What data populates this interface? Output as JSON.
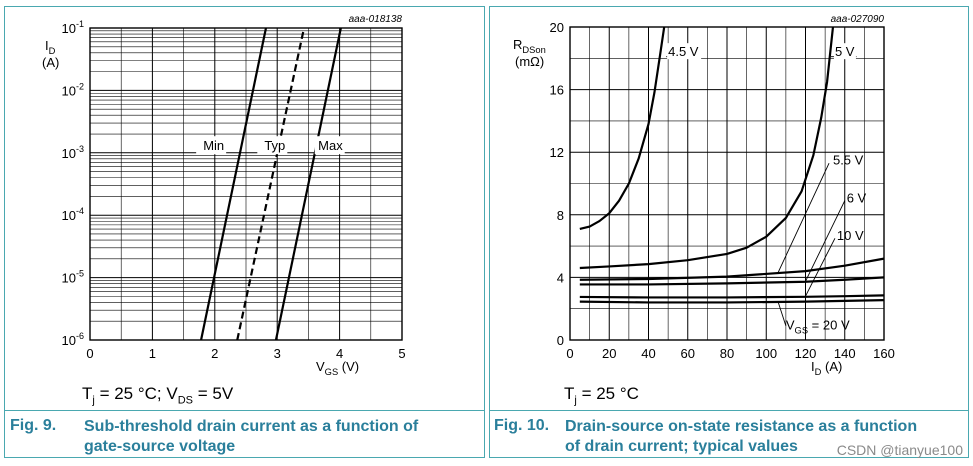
{
  "chart_data": [
    {
      "type": "line",
      "id_label": "aaa-018138",
      "ylabel": "I",
      "ylabel_sub": "D",
      "ylabel_unit": "(A)",
      "xlabel": "V",
      "xlabel_sub": "GS",
      "xlabel_unit": "(V)",
      "xlim": [
        0,
        5
      ],
      "ylim": [
        1e-06,
        0.1
      ],
      "yscale": "log",
      "x_ticks": [
        "0",
        "1",
        "2",
        "3",
        "4",
        "5"
      ],
      "y_ticks": [
        {
          "base": "10",
          "exp": "-6",
          "value": 1e-06
        },
        {
          "base": "10",
          "exp": "-5",
          "value": 1e-05
        },
        {
          "base": "10",
          "exp": "-4",
          "value": 0.0001
        },
        {
          "base": "10",
          "exp": "-3",
          "value": 0.001
        },
        {
          "base": "10",
          "exp": "-2",
          "value": 0.01
        },
        {
          "base": "10",
          "exp": "-1",
          "value": 0.1
        }
      ],
      "grid": true,
      "series": [
        {
          "name": "Min",
          "style": "solid",
          "x": [
            1.78,
            2.82
          ],
          "y": [
            1e-06,
            0.1
          ],
          "label_pos": [
            2.15,
            0.0011
          ]
        },
        {
          "name": "Typ",
          "style": "dashed",
          "x": [
            2.36,
            3.43
          ],
          "y": [
            1e-06,
            0.1
          ],
          "label_pos": [
            3.13,
            0.0011
          ]
        },
        {
          "name": "Max",
          "style": "solid",
          "x": [
            2.98,
            4.02
          ],
          "y": [
            1e-06,
            0.1
          ],
          "label_pos": [
            4.05,
            0.0011
          ]
        }
      ],
      "conditions": {
        "t": "T",
        "t_sub": "j",
        "text": "= 25 °C; V",
        "v_sub": "DS",
        "tail": "= 5V"
      },
      "figure_label": "Fig. 9.",
      "figure_title_line1": "Sub-threshold drain current as a function of",
      "figure_title_line2": "gate-source voltage"
    },
    {
      "type": "line",
      "id_label": "aaa-027090",
      "ylabel": "R",
      "ylabel_sub": "DSon",
      "ylabel_unit": "(mΩ)",
      "xlabel": "I",
      "xlabel_sub": "D",
      "xlabel_unit": "(A)",
      "xlim": [
        0,
        160
      ],
      "ylim": [
        0,
        20
      ],
      "x_ticks": [
        "0",
        "20",
        "40",
        "60",
        "80",
        "100",
        "120",
        "140",
        "160"
      ],
      "y_ticks": [
        "0",
        "4",
        "8",
        "12",
        "16",
        "20"
      ],
      "grid": true,
      "series": [
        {
          "name": "4.5 V",
          "x": [
            5,
            10,
            15,
            20,
            25,
            30,
            35,
            40,
            43,
            46,
            48
          ],
          "y": [
            7.1,
            7.25,
            7.6,
            8.1,
            8.9,
            10.0,
            11.6,
            13.8,
            15.8,
            18.3,
            20
          ]
        },
        {
          "name": "5 V",
          "x": [
            5,
            20,
            40,
            60,
            80,
            90,
            100,
            110,
            118,
            124,
            128,
            131,
            134
          ],
          "y": [
            4.6,
            4.7,
            4.85,
            5.1,
            5.5,
            5.9,
            6.6,
            7.8,
            9.5,
            11.8,
            14.2,
            16.5,
            20
          ]
        },
        {
          "name": "5.5 V",
          "x": [
            5,
            40,
            80,
            120,
            140,
            160
          ],
          "y": [
            3.85,
            3.9,
            4.05,
            4.4,
            4.75,
            5.2
          ]
        },
        {
          "name": "6 V",
          "x": [
            5,
            40,
            80,
            120,
            140,
            160
          ],
          "y": [
            3.55,
            3.55,
            3.62,
            3.72,
            3.85,
            4.0
          ]
        },
        {
          "name": "10 V",
          "x": [
            5,
            40,
            80,
            120,
            140,
            160
          ],
          "y": [
            2.75,
            2.72,
            2.72,
            2.76,
            2.8,
            2.85
          ]
        },
        {
          "name": "V_GS = 20 V",
          "x": [
            5,
            40,
            80,
            120,
            140,
            160
          ],
          "y": [
            2.45,
            2.4,
            2.4,
            2.45,
            2.5,
            2.55
          ]
        }
      ],
      "annotations": [
        {
          "text": "4.5 V",
          "x": 50,
          "y": 18.2
        },
        {
          "text": "5 V",
          "x": 135,
          "y": 18.2
        },
        {
          "text": "5.5 V",
          "x": 134,
          "y": 11.2
        },
        {
          "text": "6 V",
          "x": 141,
          "y": 8.8
        },
        {
          "text": "10 V",
          "x": 136,
          "y": 6.4
        },
        {
          "vgs_prefix": "V",
          "vgs_sub": "GS",
          "text": " = 20 V",
          "x": 110,
          "y": 0.8
        }
      ],
      "conditions": {
        "t": "T",
        "t_sub": "j",
        "text": "= 25 °C"
      },
      "figure_label": "Fig. 10.",
      "figure_title_line1": "Drain-source on-state resistance as a function",
      "figure_title_line2": "of drain current; typical values"
    }
  ],
  "watermark": "CSDN @tianyue100"
}
